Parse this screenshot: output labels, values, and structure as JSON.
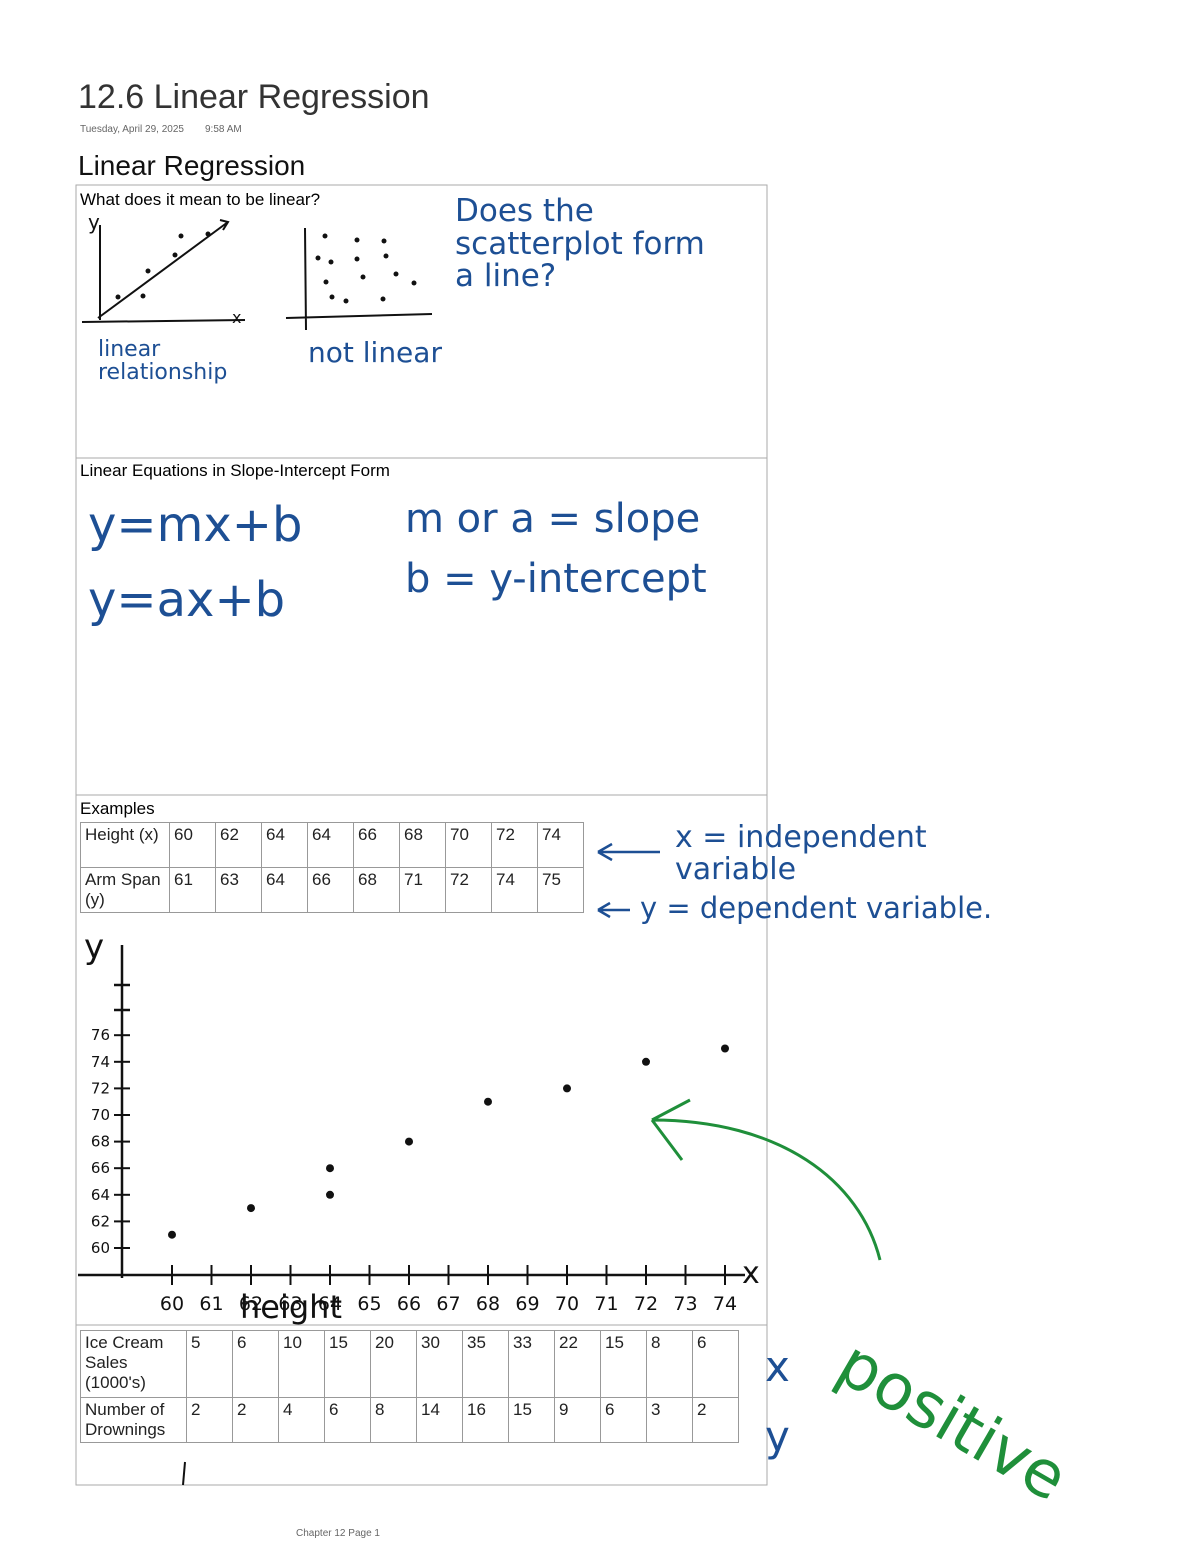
{
  "header": {
    "title": "12.6 Linear Regression",
    "date": "Tuesday, April 29, 2025",
    "time": "9:58 AM"
  },
  "heading": "Linear Regression",
  "sections": [
    {
      "title": "What does it mean to be linear?",
      "notes": [
        "Does the scatterplot form a line?"
      ],
      "sketch_labels": [
        "y",
        "x",
        "linear relationship",
        "not linear"
      ]
    },
    {
      "title": "Linear Equations in Slope-Intercept Form",
      "notes": [
        "y=mx+b",
        "y=ax+b",
        "m or a = slope",
        "b = y-intercept"
      ]
    },
    {
      "title": "Examples",
      "table": {
        "rows": [
          {
            "label": "Height (x)",
            "cells": [
              60,
              62,
              64,
              64,
              66,
              68,
              70,
              72,
              74
            ]
          },
          {
            "label": "Arm Span (y)",
            "cells": [
              61,
              63,
              64,
              66,
              68,
              71,
              72,
              74,
              75
            ]
          }
        ]
      },
      "notes": [
        "x = independent variable",
        "y = dependent variable."
      ],
      "graph": {
        "x_label": "x",
        "y_label": "y",
        "x_title": "height",
        "xticks": [
          60,
          61,
          62,
          63,
          64,
          65,
          66,
          67,
          68,
          69,
          70,
          71,
          72,
          73,
          74
        ],
        "yticks": [
          60,
          62,
          64,
          66,
          68,
          70,
          72,
          74,
          76
        ]
      }
    },
    {
      "table": {
        "rows": [
          {
            "label": "Ice Cream Sales (1000's)",
            "cells": [
              5,
              6,
              10,
              15,
              20,
              30,
              35,
              33,
              22,
              15,
              8,
              6
            ]
          },
          {
            "label": "Number of Drownings",
            "cells": [
              2,
              2,
              4,
              6,
              8,
              14,
              16,
              15,
              9,
              6,
              3,
              2
            ]
          }
        ]
      },
      "notes": [
        "x",
        "y",
        "positive"
      ]
    }
  ],
  "footer": "Chapter 12 Page 1"
}
